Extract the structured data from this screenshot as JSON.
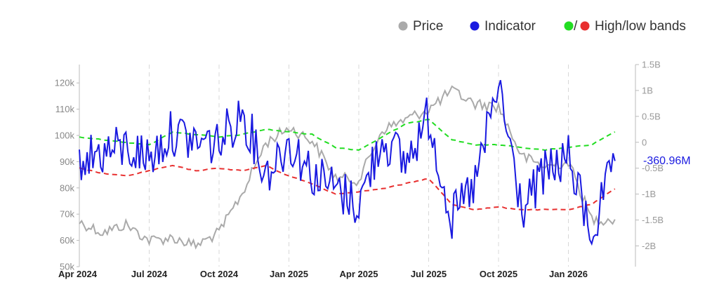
{
  "legend": {
    "price_label": "Price",
    "indicator_label": "Indicator",
    "bands_separator": "/",
    "bands_label": "High/low bands"
  },
  "colors": {
    "price": "#aaaaaa",
    "indicator": "#1a1ae0",
    "high_band": "#22dd22",
    "low_band": "#e83030",
    "axis": "#bbbbbb",
    "grid": "#d8d8d8"
  },
  "chart_data": {
    "type": "line",
    "x_ticks": [
      "Apr 2024",
      "Jul 2024",
      "Oct 2024",
      "Jan 2025",
      "Apr 2025",
      "Jul 2025",
      "Oct 2025",
      "Jan 2026"
    ],
    "x_range": [
      "2024-04",
      "2026-03"
    ],
    "y_left": {
      "ticks": [
        "50k",
        "60k",
        "70k",
        "80k",
        "90k",
        "100k",
        "110k",
        "120k"
      ],
      "range": [
        50000,
        127000
      ]
    },
    "y_right": {
      "ticks": [
        "-2B",
        "-1.5B",
        "-1B",
        "-0.5B",
        "0",
        "0.5B",
        "1B",
        "1.5B"
      ],
      "range": [
        -2.4,
        1.5
      ]
    },
    "grid": "vertical dashed at x ticks",
    "legend_position": "top-right",
    "last_value_label": "-360.96M",
    "series": [
      {
        "name": "Price",
        "axis": "left",
        "style": "solid",
        "x": [
          "2024-04",
          "2024-05",
          "2024-06",
          "2024-07",
          "2024-08",
          "2024-09",
          "2024-10",
          "2024-11",
          "2024-12",
          "2025-01",
          "2025-02",
          "2025-03",
          "2025-04",
          "2025-05",
          "2025-06",
          "2025-07",
          "2025-08",
          "2025-09",
          "2025-10",
          "2025-11",
          "2025-12",
          "2026-01",
          "2026-02",
          "2026-03"
        ],
        "values": [
          67000,
          63000,
          66000,
          60000,
          61000,
          58000,
          63000,
          78000,
          97000,
          103000,
          98000,
          84000,
          83000,
          102000,
          106000,
          110000,
          117000,
          112000,
          111000,
          92000,
          88000,
          90000,
          68000,
          68000
        ]
      },
      {
        "name": "Indicator",
        "axis": "right",
        "style": "solid",
        "x": [
          "2024-04",
          "2024-05",
          "2024-06",
          "2024-07",
          "2024-08",
          "2024-09",
          "2024-10",
          "2024-11",
          "2024-12",
          "2025-01",
          "2025-02",
          "2025-03",
          "2025-04",
          "2025-05",
          "2025-06",
          "2025-07",
          "2025-08",
          "2025-09",
          "2025-10",
          "2025-11",
          "2025-12",
          "2026-01",
          "2026-02",
          "2026-03"
        ],
        "values": [
          -0.3,
          -0.2,
          -0.1,
          -0.3,
          0.2,
          0.0,
          0.0,
          0.6,
          -0.6,
          0.0,
          -0.6,
          -0.9,
          -1.2,
          0.1,
          -0.4,
          0.5,
          -1.5,
          -0.8,
          1.1,
          -1.3,
          -0.6,
          -0.3,
          -1.8,
          -0.36
        ]
      },
      {
        "name": "High band",
        "axis": "right",
        "style": "dashed",
        "x": [
          "2024-04",
          "2024-05",
          "2024-06",
          "2024-07",
          "2024-08",
          "2024-09",
          "2024-10",
          "2024-11",
          "2024-12",
          "2025-01",
          "2025-02",
          "2025-03",
          "2025-04",
          "2025-05",
          "2025-06",
          "2025-07",
          "2025-08",
          "2025-09",
          "2025-10",
          "2025-11",
          "2025-12",
          "2026-01",
          "2026-02",
          "2026-03"
        ],
        "values": [
          0.1,
          0.05,
          0.0,
          -0.05,
          0.2,
          0.15,
          0.1,
          0.15,
          0.25,
          0.2,
          0.15,
          -0.1,
          -0.15,
          0.1,
          0.35,
          0.45,
          0.05,
          -0.05,
          -0.05,
          -0.1,
          -0.15,
          -0.1,
          -0.05,
          0.2
        ]
      },
      {
        "name": "Low band",
        "axis": "right",
        "style": "dashed",
        "x": [
          "2024-04",
          "2024-05",
          "2024-06",
          "2024-07",
          "2024-08",
          "2024-09",
          "2024-10",
          "2024-11",
          "2024-12",
          "2025-01",
          "2025-02",
          "2025-03",
          "2025-04",
          "2025-05",
          "2025-06",
          "2025-07",
          "2025-08",
          "2025-09",
          "2025-10",
          "2025-11",
          "2025-12",
          "2026-01",
          "2026-02",
          "2026-03"
        ],
        "values": [
          -0.5,
          -0.6,
          -0.65,
          -0.55,
          -0.45,
          -0.55,
          -0.5,
          -0.55,
          -0.45,
          -0.65,
          -0.8,
          -1.0,
          -0.95,
          -0.9,
          -0.8,
          -0.7,
          -1.2,
          -1.3,
          -1.25,
          -1.3,
          -1.3,
          -1.3,
          -1.2,
          -0.9
        ]
      }
    ]
  }
}
